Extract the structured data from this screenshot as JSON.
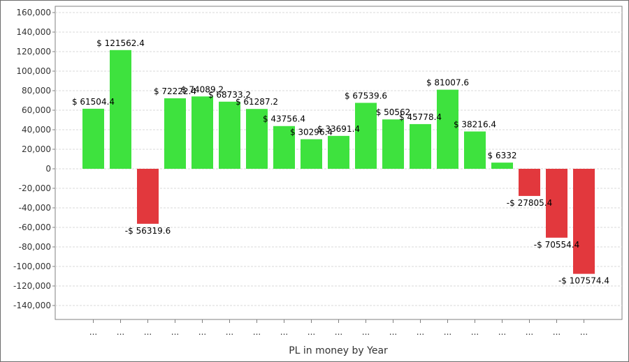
{
  "chart_data": {
    "type": "bar",
    "title": "",
    "xlabel": "PL in money by Year",
    "ylabel": "",
    "ylim": [
      -160000,
      160000
    ],
    "yticks": [
      160000,
      140000,
      120000,
      100000,
      80000,
      60000,
      40000,
      20000,
      0,
      -20000,
      -40000,
      -60000,
      -80000,
      -100000,
      -120000,
      -140000
    ],
    "ytick_labels": [
      "160,000",
      "140,000",
      "120,000",
      "100,000",
      "80,000",
      "60,000",
      "40,000",
      "20,000",
      "0",
      "-20,000",
      "-40,000",
      "-60,000",
      "-80,000",
      "-100,000",
      "-120,000",
      "-140,000"
    ],
    "categories": [
      "...",
      "...",
      "...",
      "...",
      "...",
      "...",
      "...",
      "...",
      "...",
      "...",
      "...",
      "...",
      "...",
      "...",
      "...",
      "...",
      "...",
      "...",
      "..."
    ],
    "values": [
      61504.4,
      121562.4,
      -56319.6,
      72222.4,
      74089.2,
      68733.2,
      61287.2,
      43756.4,
      30296.4,
      33691.4,
      67539.6,
      50562,
      45778.4,
      81007.6,
      38216.4,
      6332,
      -27805.4,
      -70554.4,
      -107574.4
    ],
    "data_labels": [
      "$ 61504.4",
      "$ 121562.4",
      "-$ 56319.6",
      "$ 72222.4",
      "$ 74089.2",
      "$ 68733.2",
      "$ 61287.2",
      "$ 43756.4",
      "$ 30296.4",
      "$ 33691.4",
      "$ 67539.6",
      "$ 50562",
      "$ 45778.4",
      "$ 81007.6",
      "$ 38216.4",
      "$ 6332",
      "-$ 27805.4",
      "-$ 70554.4",
      "-$ 107574.4"
    ],
    "grid": true,
    "legend": "none",
    "colors": {
      "positive": "#3ee23e",
      "negative": "#e2383d",
      "grid": "#d9d9d9",
      "axis": "#808080"
    }
  }
}
